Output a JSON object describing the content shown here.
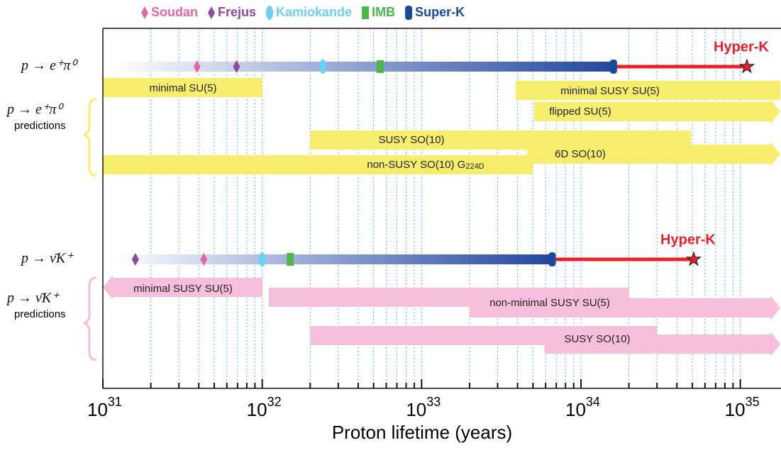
{
  "chart_data": {
    "type": "lifetime-timeline",
    "x_label": "Proton lifetime (years)",
    "log_x": true,
    "grid": true,
    "xlim": [
      1e+31,
      1.8e+35
    ],
    "xticks": [
      {
        "value": 1e+31,
        "label": "10",
        "exponent": "31"
      },
      {
        "value": 1e+32,
        "label": "10",
        "exponent": "32"
      },
      {
        "value": 1e+33,
        "label": "10",
        "exponent": "33"
      },
      {
        "value": 1e+34,
        "label": "10",
        "exponent": "34"
      },
      {
        "value": 1e+35,
        "label": "10",
        "exponent": "35"
      }
    ],
    "xminor_ticks": [
      2e+31,
      3e+31,
      4e+31,
      5e+31,
      6e+31,
      7e+31,
      8e+31,
      9e+31,
      2e+32,
      3e+32,
      4e+32,
      5e+32,
      6e+32,
      7e+32,
      8e+32,
      9e+32,
      2e+33,
      3e+33,
      4e+33,
      5e+33,
      6e+33,
      7e+33,
      8e+33,
      9e+33,
      2e+34,
      3e+34,
      4e+34,
      5e+34,
      6e+34,
      7e+34,
      8e+34,
      9e+34
    ],
    "experiments": [
      {
        "name": "Soudan",
        "color": "#e466a8",
        "shape": "diamond"
      },
      {
        "name": "Frejus",
        "color": "#8e4a9e",
        "shape": "diamond"
      },
      {
        "name": "Kamiokande",
        "color": "#6ccff6",
        "shape": "ellipse"
      },
      {
        "name": "IMB",
        "color": "#4cb748",
        "shape": "rect"
      },
      {
        "name": "Super-K",
        "color": "#1a4a9c",
        "shape": "pill"
      }
    ],
    "future_label": "Hyper-K",
    "future_color": "#e8202a",
    "predictions_label": "predictions",
    "rows": [
      {
        "label": "p → e⁺π⁰",
        "limits": [
          3.9e+31,
          6.9e+31,
          2.4e+32,
          5.5e+32,
          1.6e+34
        ],
        "hyperk": 1.1e+35,
        "band_color": "#f7ee6d",
        "bands": [
          {
            "label": "minimal SU(5)",
            "pieces": [
              {
                "from": 1e+31,
                "to": 1e+32,
                "arrow": null
              }
            ]
          },
          {
            "label": "minimal SUSY SU(5)",
            "pieces": [
              {
                "from": 3.9e+33,
                "to": null,
                "arrow": null
              }
            ]
          },
          {
            "label": "flipped SU(5)",
            "pieces": [
              {
                "from": 5.1e+33,
                "to": null,
                "arrow": "right"
              }
            ]
          },
          {
            "label": "SUSY SO(10)",
            "pieces": [
              {
                "from": 2e+32,
                "to": 4.9e+34,
                "arrow": null
              }
            ]
          },
          {
            "label": "6D SO(10)",
            "pieces": [
              {
                "from": 4.6e+33,
                "to": null,
                "arrow": "right"
              }
            ]
          },
          {
            "label": "non-SUSY SO(10) G",
            "label_sub": "224D",
            "pieces": [
              {
                "from": 1e+31,
                "to": 5e+33,
                "arrow": null
              }
            ]
          }
        ]
      },
      {
        "label": "p → ν̄K⁺",
        "limits": [
          4.3e+31,
          1.6e+31,
          1e+32,
          1.5e+32,
          6.6e+33
        ],
        "hyperk": 5.1e+34,
        "band_color": "#f6bfdc",
        "bands": [
          {
            "label": "minimal SUSY SU(5)",
            "pieces": [
              {
                "from": 1e+31,
                "to": 1e+32,
                "arrow": "left"
              }
            ]
          },
          {
            "label": "non-minimal SUSY SU(5)",
            "pieces": [
              {
                "from": 1.1e+32,
                "to": 2e+34,
                "arrow": null
              },
              {
                "from": 2e+33,
                "to": null,
                "arrow": "right"
              }
            ]
          },
          {
            "label": "SUSY SO(10)",
            "pieces": [
              {
                "from": 2e+32,
                "to": 3e+34,
                "arrow": null
              },
              {
                "from": 5.9e+33,
                "to": null,
                "arrow": "right"
              }
            ]
          }
        ]
      }
    ]
  }
}
